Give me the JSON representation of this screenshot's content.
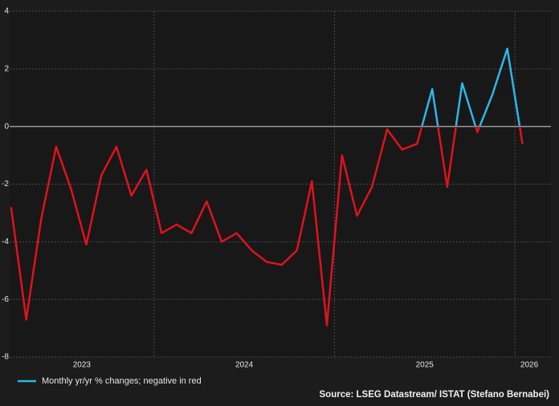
{
  "chart_data": {
    "type": "line",
    "x": [
      2023.208,
      2023.292,
      2023.375,
      2023.458,
      2023.542,
      2023.625,
      2023.708,
      2023.792,
      2023.875,
      2023.958,
      2024.042,
      2024.125,
      2024.208,
      2024.292,
      2024.375,
      2024.458,
      2024.542,
      2024.625,
      2024.708,
      2024.792,
      2024.875,
      2024.958,
      2025.042,
      2025.125,
      2025.208,
      2025.292,
      2025.375,
      2025.458,
      2025.542,
      2025.625,
      2025.708,
      2025.792,
      2025.875,
      2025.958,
      2026.042
    ],
    "series": [
      {
        "name": "Monthly yr/yr % changes; negative in red",
        "color": "#2db6e8",
        "negative_color": "#e0121c",
        "values": [
          -2.8,
          -6.7,
          -3.2,
          -0.7,
          -2.2,
          -4.1,
          -1.7,
          -0.7,
          -2.4,
          -1.5,
          -3.7,
          -3.4,
          -3.7,
          -2.6,
          -4.0,
          -3.7,
          -4.3,
          -4.7,
          -4.8,
          -4.3,
          -1.9,
          -6.9,
          -1.0,
          -3.1,
          -2.1,
          -0.1,
          -0.8,
          -0.6,
          1.3,
          -2.1,
          1.5,
          -0.2,
          1.1,
          2.7,
          -0.6
        ]
      }
    ],
    "xlim": [
      2023.2,
      2026.2
    ],
    "xticks": [
      {
        "value": 2023.6,
        "label": "2023"
      },
      {
        "value": 2024.5,
        "label": "2024"
      },
      {
        "value": 2025.5,
        "label": "2025"
      },
      {
        "value": 2026.08,
        "label": "2026"
      }
    ],
    "x_gridlines": [
      2024,
      2025,
      2026
    ],
    "ylim": [
      -8,
      4
    ],
    "yticks": [
      -8,
      -6,
      -4,
      -2,
      0,
      2,
      4
    ],
    "grid": true,
    "source": "Source: LSEG Datastream/ ISTAT (Stefano Bernabei)"
  }
}
